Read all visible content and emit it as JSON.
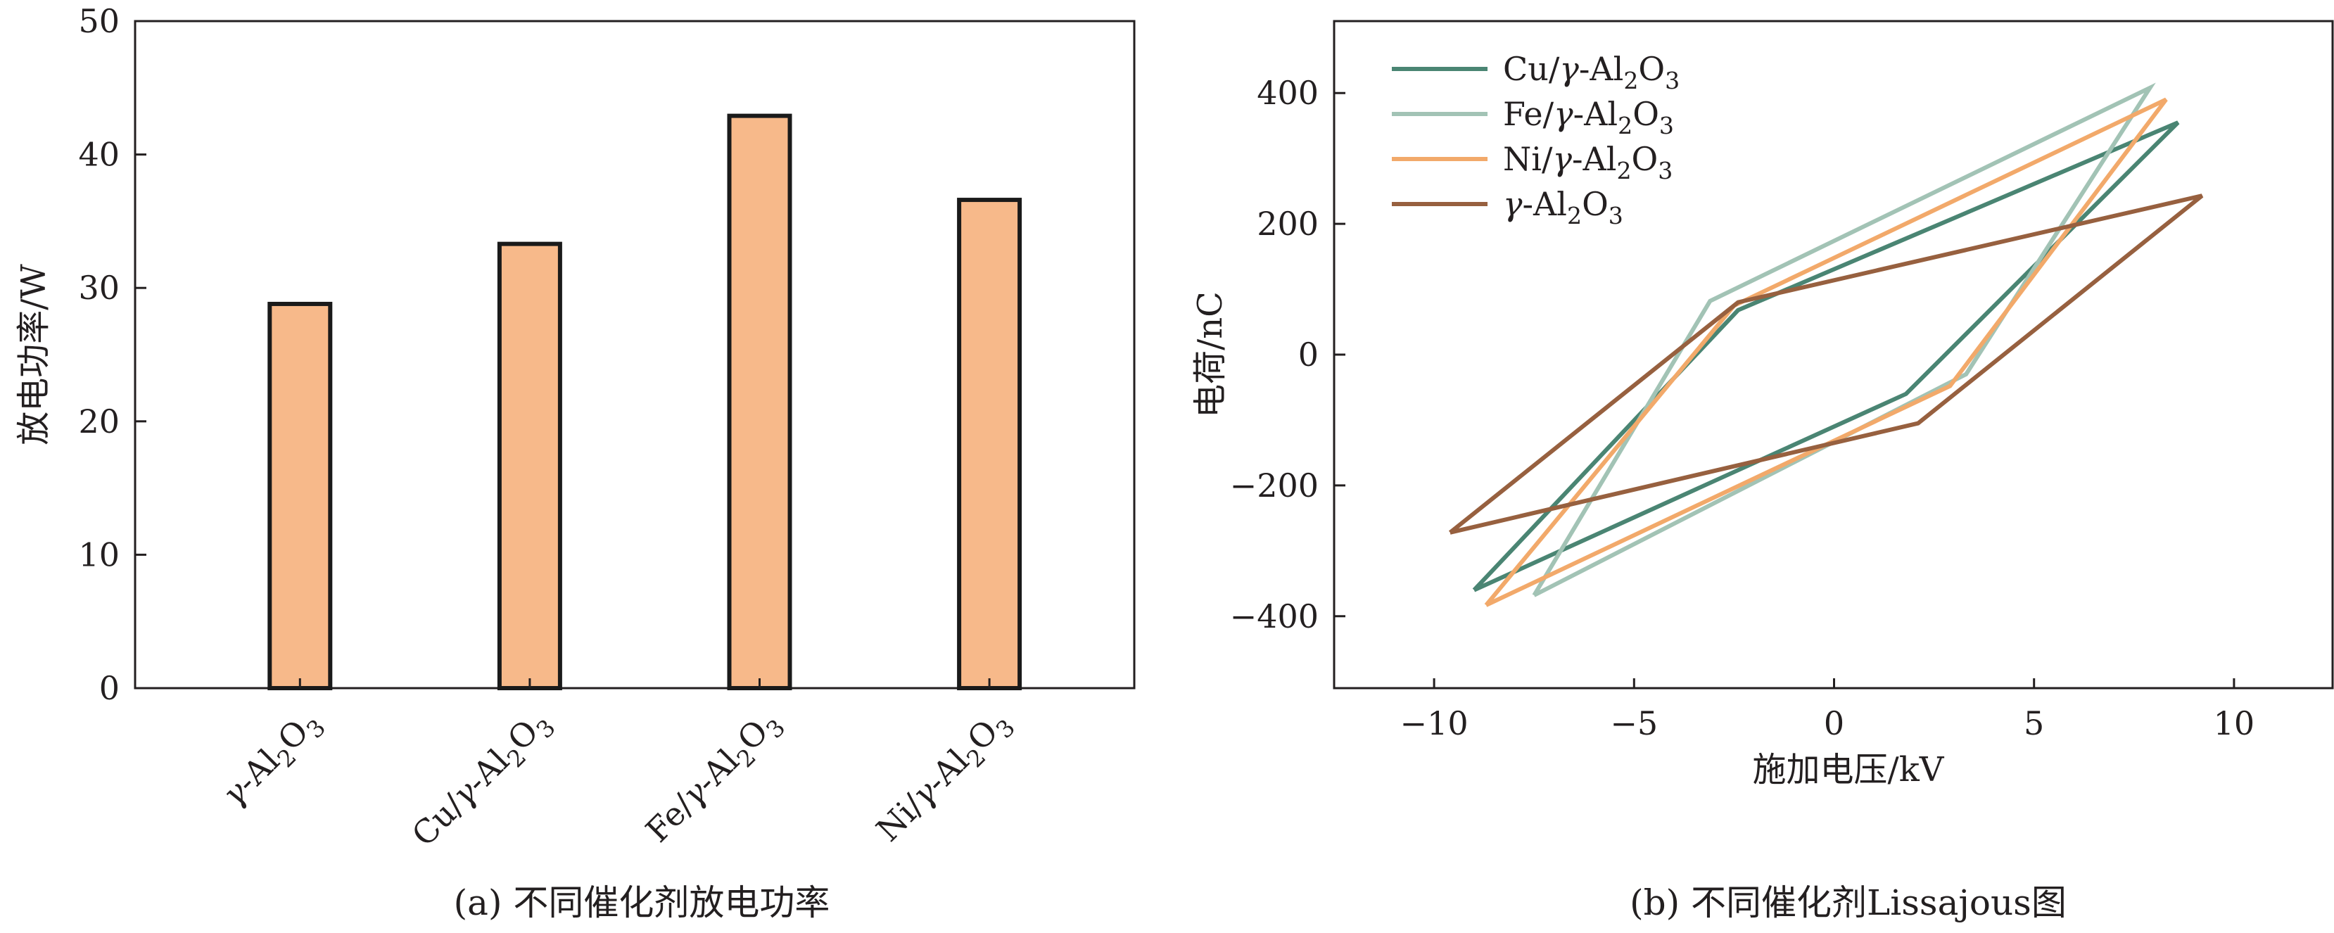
{
  "chart_data": [
    {
      "type": "bar",
      "caption": "(a) 不同催化剂放电功率",
      "ylabel": "放电功率/W",
      "xlabel": "",
      "categories": [
        [
          "γ",
          "-Al",
          "2",
          "O",
          "3"
        ],
        [
          "Cu/",
          "γ",
          "-Al",
          "2",
          "O",
          "3"
        ],
        [
          "Fe/",
          "γ",
          "-Al",
          "2",
          "O",
          "3"
        ],
        [
          "Ni/",
          "γ",
          "-Al",
          "2",
          "O",
          "3"
        ]
      ],
      "values": [
        28.8,
        33.3,
        42.9,
        36.6
      ],
      "ylim": [
        0,
        50
      ],
      "yticks": [
        0,
        10,
        20,
        30,
        40,
        50
      ],
      "bar_color": "#F7B98A",
      "edge_color": "#1a1a1a",
      "grid": false
    },
    {
      "type": "line",
      "caption": "(b) 不同催化剂Lissajous图",
      "xlabel": "施加电压/kV",
      "ylabel": "电荷/nC",
      "xlim": [
        -12.5,
        12.5
      ],
      "ylim": [
        -510,
        510
      ],
      "xticks": [
        -10,
        -5,
        0,
        5,
        10
      ],
      "yticks": [
        -400,
        -200,
        0,
        200,
        400
      ],
      "xtick_labels": [
        "−10",
        "−5",
        "0",
        "5",
        "10"
      ],
      "ytick_labels": [
        "−400",
        "−200",
        "0",
        "200",
        "400"
      ],
      "legend_position": "top-left",
      "grid": false,
      "series": [
        {
          "name": [
            "Cu/",
            "γ",
            "-Al",
            "2",
            "O",
            "3"
          ],
          "color": "#4A8573",
          "x": [
            -9,
            -2.4,
            8.6,
            1.8,
            -9
          ],
          "y": [
            -360,
            68,
            355,
            -60,
            -360
          ]
        },
        {
          "name": [
            "Fe/",
            "γ",
            "-Al",
            "2",
            "O",
            "3"
          ],
          "color": "#A2C3B5",
          "x": [
            -7.5,
            -3.1,
            7.9,
            3.3,
            -7.5
          ],
          "y": [
            -368,
            82,
            408,
            -30,
            -368
          ]
        },
        {
          "name": [
            "Ni/",
            "γ",
            "-Al",
            "2",
            "O",
            "3"
          ],
          "color": "#F2A96A",
          "x": [
            -8.7,
            -2.5,
            8.3,
            2.9,
            -8.7
          ],
          "y": [
            -383,
            75,
            390,
            -48,
            -383
          ]
        },
        {
          "name": [
            "γ",
            "-Al",
            "2",
            "O",
            "3"
          ],
          "color": "#97603F",
          "x": [
            -9.6,
            -2.4,
            9.2,
            2.1,
            -9.6
          ],
          "y": [
            -272,
            80,
            243,
            -105,
            -272
          ]
        }
      ]
    }
  ]
}
